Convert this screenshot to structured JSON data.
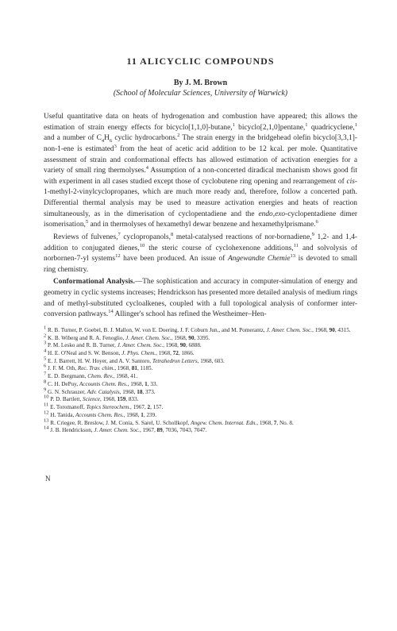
{
  "chapter_title": "11  ALICYCLIC  COMPOUNDS",
  "author": "By J. M. Brown",
  "affiliation": "(School of Molecular Sciences, University of Warwick)",
  "para1": "Useful quantitative data on heats of hydrogenation and combustion have appeared; this allows the estimation of strain energy effects for bicyclo[1,1,0]-butane,¹ bicyclo[2,1,0]pentane,¹ quadricyclene,¹ and a number of C₄H₆ cyclic hydrocarbons.² The strain energy in the bridgehead olefin bicyclo[3,3,1]-non-1-ene is estimated³ from the heat of acetic acid addition to be 12 kcal. per mole. Quantitative assessment of strain and conformational effects has allowed estimation of activation energies for a variety of small ring thermolyses.⁴ Assumption of a non-concerted diradical mechanism shows good fit with experiment in all cases studied except those of cyclobutene ring opening and rearrangement of cis-1-methyl-2-vinylcyclopropanes, which are much more ready and, therefore, follow a concerted path. Differential thermal analysis may be used to measure activation energies and heats of reaction simultaneously, as in the dimerisation of cyclopentadiene and the endo,exo-cyclopentadiene dimer isomerisation,⁵ and in thermolyses of hexamethyl dewar benzene and hexamethylprismane.⁶",
  "para2": "Reviews of fulvenes,⁷ cyclopropanols,⁸ metal-catalysed reactions of nor-bornadiene,⁹ 1,2- and 1,4-addition to conjugated dienes,¹⁰ the steric course of cyclohexenone additions,¹¹ and solvolysis of norbornen-7-yl systems¹² have been produced. An issue of Angewandte Chemie¹³ is devoted to small ring chemistry.",
  "para3_lead": "Conformational Analysis.",
  "para3_rest": "—The sophistication and accuracy in computer-simulation of energy and geometry in cyclic systems increases; Hendrickson has presented more detailed analysis of medium rings and of methyl-substituted cycloalkenes, coupled with a full topological analysis of conformer inter-conversion pathways.¹⁴ Allinger's school has refined the Westheimer–Hen-",
  "refs": [
    "¹ R. B. Turner, P. Goebel, B. J. Mallon, W. von E. Doering, J. F. Coburn Jun., and M. Pomerantz, J. Amer. Chem. Soc., 1968, 90, 4315.",
    "² K. B. Wiberg and R. A. Fenoglio, J. Amer. Chem. Soc., 1968, 90, 3395.",
    "³ P. M. Lesko and R. B. Turner, J. Amer. Chem. Soc., 1968, 90, 6888.",
    "⁴ H. E. O'Neal and S. W. Benson, J. Phys. Chem., 1968, 72, 1866.",
    "⁵ E. J. Barrett, H. W. Hoyer, and A. V. Santoro, Tetrahedron Letters, 1968, 603.",
    "⁶ J. F. M. Oth, Rec. Trav. chim., 1968, 81, 1185.",
    "⁷ E. D. Bergmann, Chem. Rev., 1968, 41.",
    "⁸ C. H. DePuy, Accounts Chem. Res., 1968, 1, 33.",
    "⁹ G. N. Schrauzer, Adv. Catalysis, 1968, 18, 373.",
    "¹⁰ P. D. Bartlett, Science, 1968, 159, 833.",
    "¹¹ E. Toromanoff, Topics Stereochem., 1967, 2, 157.",
    "¹² H. Tanida, Accounts Chem. Res., 1968, 1, 239.",
    "¹³ R. Criegee, R. Breslow, J. M. Conia, S. Sarel, U. Schollkopf, Angew. Chem. Internat. Edn., 1968, 7, No. 8.",
    "¹⁴ J. B. Hendrickson, J. Amer. Chem. Soc., 1967, 89, 7036, 7043, 7047."
  ],
  "sig": "N"
}
